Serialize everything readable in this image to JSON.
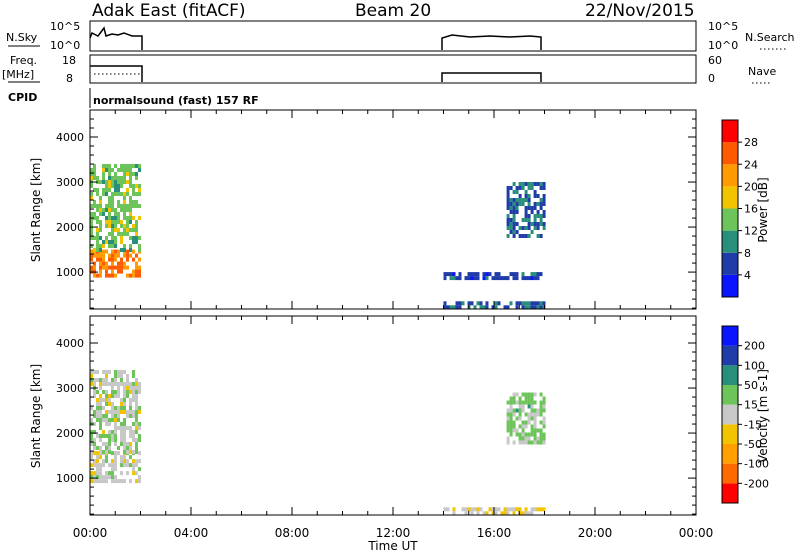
{
  "header": {
    "station": "Adak East (fitACF)",
    "beam": "Beam 20",
    "date": "22/Nov/2015"
  },
  "panels": {
    "nsky_label": "N.Sky",
    "nsky_ticks": [
      "10^5",
      "10^0"
    ],
    "nsearch_label": "N.Search",
    "nsearch_ticks": [
      "10^5",
      "10^0"
    ],
    "freq_label": "Freq.",
    "freq_unit": "[MHz]",
    "freq_ticks": [
      "18",
      "8"
    ],
    "nave_label": "Nave",
    "nave_ticks": [
      "60",
      "0"
    ],
    "cpid_label": "CPID",
    "cpid_text": "normalsound (fast) 157 RF"
  },
  "colors": {
    "power_scale": [
      "#0a14ff",
      "#1f3ca8",
      "#2a8f7a",
      "#6dc45a",
      "#f2c400",
      "#ff9a00",
      "#ff5a00",
      "#ff0000"
    ],
    "velocity_scale": [
      "#ff0000",
      "#ff6a00",
      "#ff9f00",
      "#f2c400",
      "#c8c8c8",
      "#6dc45a",
      "#2a8f7a",
      "#1f3ca8",
      "#0a14ff"
    ]
  },
  "chart_data": [
    {
      "type": "heatmap",
      "name": "power",
      "xlabel": "",
      "ylabel": "Slant Range [km]",
      "xlim": [
        "00:00",
        "00:00"
      ],
      "ylim": [
        180,
        4600
      ],
      "x_ticks": [
        "00:00",
        "04:00",
        "08:00",
        "12:00",
        "16:00",
        "20:00",
        "00:00"
      ],
      "y_ticks": [
        1000,
        2000,
        3000,
        4000
      ],
      "colorbar_label": "Power [dB]",
      "colorbar_ticks": [
        "4",
        "8",
        "12",
        "16",
        "20",
        "24",
        "28"
      ],
      "regions": [
        {
          "t_start": "00:00",
          "t_end": "02:00",
          "range_km": [
            900,
            1500
          ],
          "level_db": 24
        },
        {
          "t_start": "00:00",
          "t_end": "02:00",
          "range_km": [
            1500,
            3400
          ],
          "level_db": 14
        },
        {
          "t_start": "14:00",
          "t_end": "18:00",
          "range_km": [
            180,
            350
          ],
          "level_db": 8
        },
        {
          "t_start": "14:00",
          "t_end": "18:00",
          "range_km": [
            900,
            1000
          ],
          "level_db": 6
        },
        {
          "t_start": "16:30",
          "t_end": "18:00",
          "range_km": [
            1800,
            3000
          ],
          "level_db": 8
        }
      ]
    },
    {
      "type": "heatmap",
      "name": "velocity",
      "xlabel": "Time UT",
      "ylabel": "Slant Range [km]",
      "xlim": [
        "00:00",
        "00:00"
      ],
      "ylim": [
        180,
        4600
      ],
      "x_ticks": [
        "00:00",
        "04:00",
        "08:00",
        "12:00",
        "16:00",
        "20:00",
        "00:00"
      ],
      "y_ticks": [
        1000,
        2000,
        3000,
        4000
      ],
      "colorbar_label": "Velocity [m s-1]",
      "colorbar_ticks": [
        "200",
        "100",
        "50",
        "15",
        "-15",
        "-50",
        "-100",
        "-200"
      ],
      "regions": [
        {
          "t_start": "00:00",
          "t_end": "02:00",
          "range_km": [
            900,
            1600
          ],
          "velocity": 0
        },
        {
          "t_start": "00:00",
          "t_end": "02:00",
          "range_km": [
            1600,
            3400
          ],
          "velocity": 10
        },
        {
          "t_start": "14:00",
          "t_end": "18:00",
          "range_km": [
            180,
            350
          ],
          "velocity": -30
        },
        {
          "t_start": "16:30",
          "t_end": "18:00",
          "range_km": [
            1800,
            2900
          ],
          "velocity": 40
        }
      ]
    }
  ]
}
